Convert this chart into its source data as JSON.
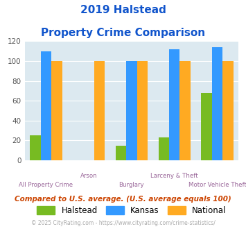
{
  "title_line1": "2019 Halstead",
  "title_line2": "Property Crime Comparison",
  "categories": [
    "All Property Crime",
    "Arson",
    "Burglary",
    "Larceny & Theft",
    "Motor Vehicle Theft"
  ],
  "halstead": [
    25,
    0,
    15,
    23,
    68
  ],
  "kansas": [
    110,
    0,
    100,
    112,
    114
  ],
  "national": [
    100,
    100,
    100,
    100,
    100
  ],
  "halstead_color": "#77bb22",
  "kansas_color": "#3399ff",
  "national_color": "#ffaa22",
  "ylim": [
    0,
    120
  ],
  "yticks": [
    0,
    20,
    40,
    60,
    80,
    100,
    120
  ],
  "plot_bg": "#dce9f0",
  "title_color": "#1155cc",
  "xlabel_color": "#996699",
  "footer_text": "Compared to U.S. average. (U.S. average equals 100)",
  "copyright_text": "© 2025 CityRating.com - https://www.cityrating.com/crime-statistics/",
  "legend_labels": [
    "Halstead",
    "Kansas",
    "National"
  ],
  "bar_width": 0.25
}
